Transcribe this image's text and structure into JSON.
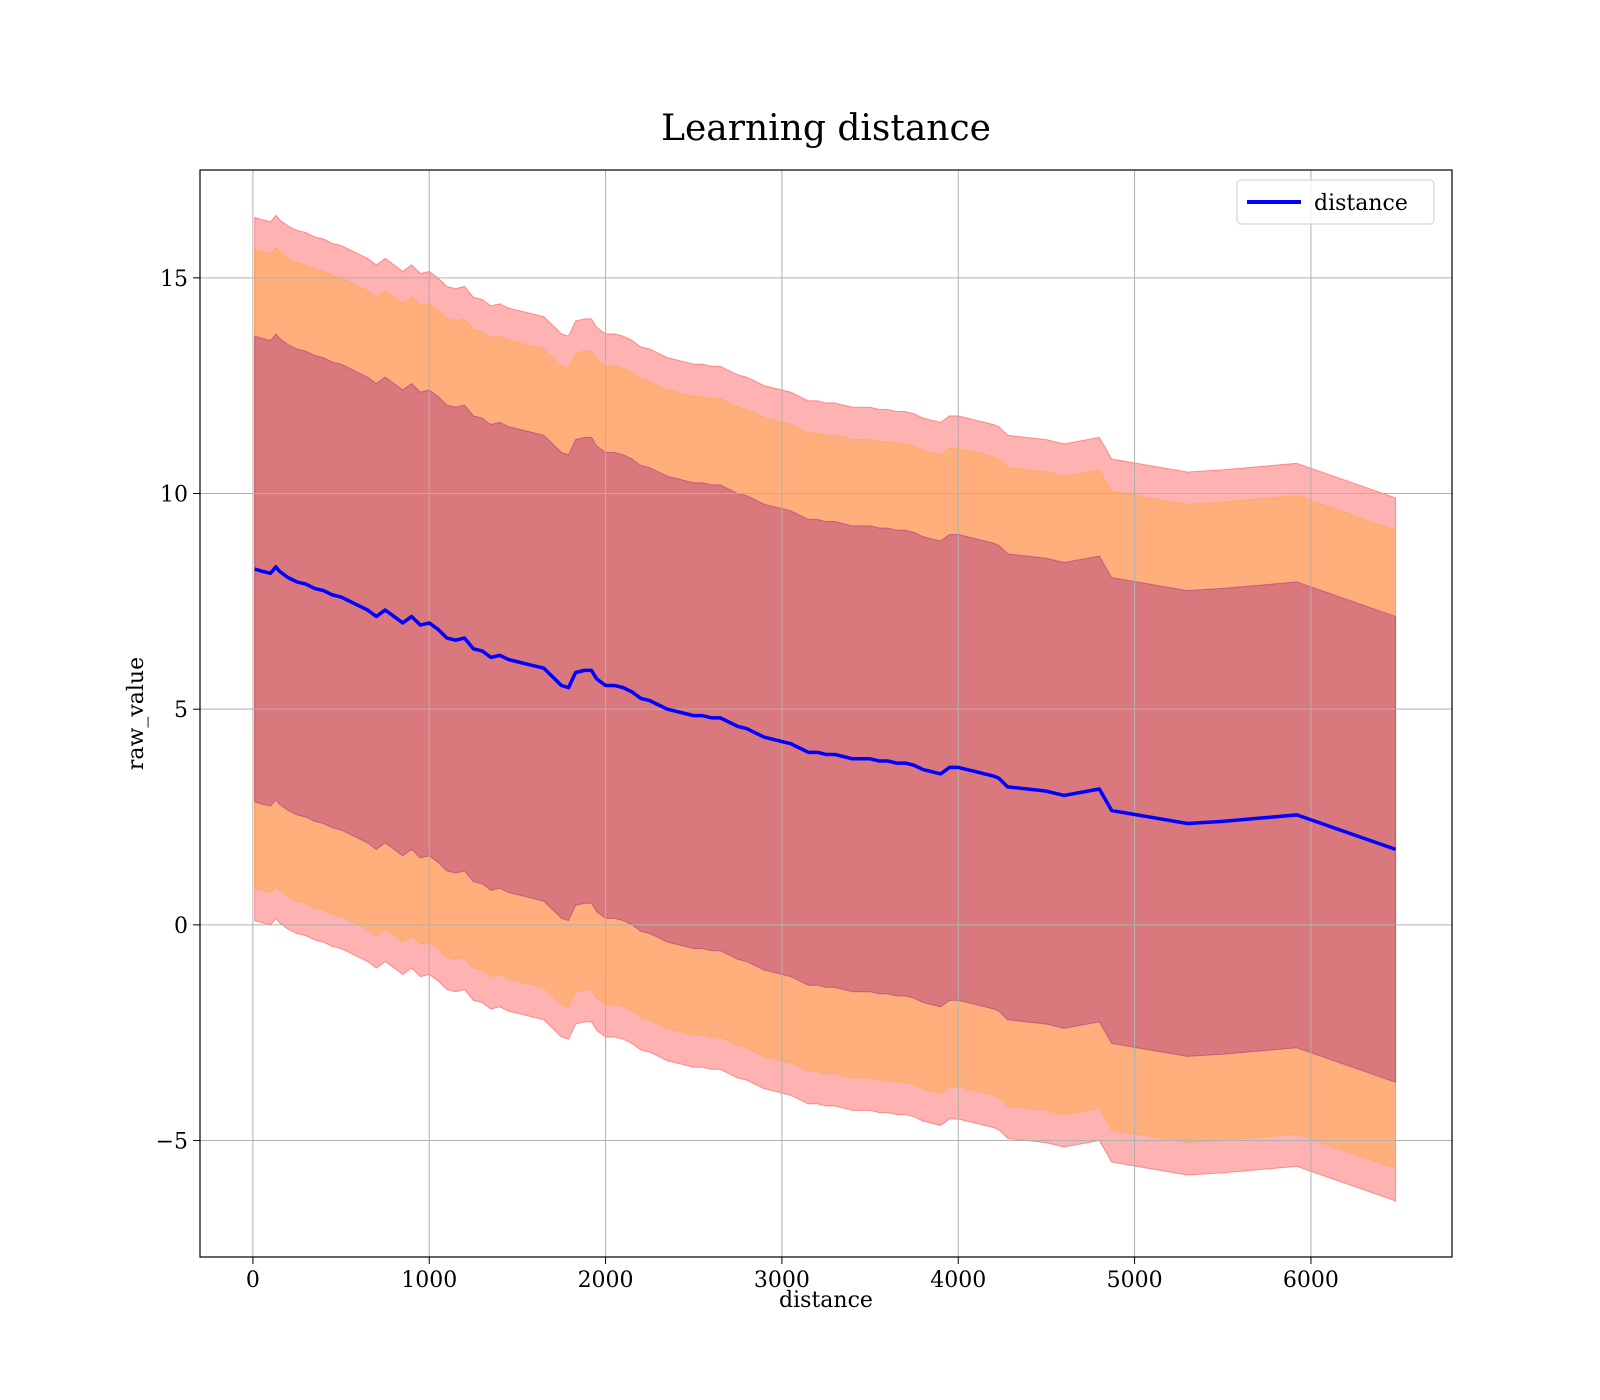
{
  "chart_data": {
    "type": "line",
    "title": "Learning distance",
    "xlabel": "distance",
    "ylabel": "raw_value",
    "xlim": [
      -300,
      6800
    ],
    "ylim": [
      -7.7,
      17.5
    ],
    "xticks": [
      0,
      1000,
      2000,
      3000,
      4000,
      5000,
      6000
    ],
    "xtick_labels": [
      "0",
      "1000",
      "2000",
      "3000",
      "4000",
      "5000",
      "6000"
    ],
    "yticks": [
      -5,
      0,
      5,
      10,
      15
    ],
    "ytick_labels": [
      "−5",
      "0",
      "5",
      "10",
      "15"
    ],
    "grid": true,
    "legend": {
      "position": "top-right",
      "entries": [
        "distance"
      ]
    },
    "colors": {
      "line": "#0000ff",
      "band_outer": "#ff0000",
      "band_middle": "#ffa500",
      "band_inner": "#800080",
      "grid": "#b0b0b0"
    },
    "series": [
      {
        "name": "distance",
        "x": [
          10,
          50,
          100,
          130,
          150,
          200,
          250,
          300,
          350,
          400,
          450,
          500,
          550,
          600,
          650,
          700,
          750,
          800,
          850,
          900,
          950,
          1000,
          1050,
          1100,
          1150,
          1200,
          1250,
          1300,
          1350,
          1400,
          1450,
          1500,
          1550,
          1600,
          1650,
          1700,
          1750,
          1790,
          1830,
          1880,
          1920,
          1950,
          2000,
          2050,
          2100,
          2150,
          2200,
          2250,
          2300,
          2350,
          2400,
          2450,
          2500,
          2550,
          2600,
          2650,
          2700,
          2750,
          2800,
          2850,
          2900,
          2950,
          3000,
          3050,
          3100,
          3150,
          3200,
          3250,
          3300,
          3350,
          3400,
          3450,
          3500,
          3550,
          3600,
          3650,
          3700,
          3750,
          3800,
          3850,
          3900,
          3950,
          4000,
          4050,
          4100,
          4150,
          4200,
          4230,
          4280,
          4500,
          4600,
          4800,
          4870,
          5300,
          5500,
          5920,
          6480
        ],
        "y": [
          8.25,
          8.2,
          8.15,
          8.3,
          8.2,
          8.05,
          7.95,
          7.9,
          7.8,
          7.75,
          7.65,
          7.6,
          7.5,
          7.4,
          7.3,
          7.15,
          7.3,
          7.15,
          7.0,
          7.15,
          6.95,
          7.0,
          6.85,
          6.65,
          6.6,
          6.65,
          6.4,
          6.35,
          6.2,
          6.25,
          6.15,
          6.1,
          6.05,
          6.0,
          5.95,
          5.75,
          5.55,
          5.5,
          5.85,
          5.9,
          5.9,
          5.7,
          5.55,
          5.55,
          5.5,
          5.4,
          5.25,
          5.2,
          5.1,
          5.0,
          4.95,
          4.9,
          4.85,
          4.85,
          4.8,
          4.8,
          4.7,
          4.6,
          4.55,
          4.45,
          4.35,
          4.3,
          4.25,
          4.2,
          4.1,
          4.0,
          4.0,
          3.95,
          3.95,
          3.9,
          3.85,
          3.85,
          3.85,
          3.8,
          3.8,
          3.75,
          3.75,
          3.7,
          3.6,
          3.55,
          3.5,
          3.65,
          3.65,
          3.6,
          3.55,
          3.5,
          3.45,
          3.4,
          3.2,
          3.1,
          3.0,
          3.15,
          2.65,
          2.35,
          2.4,
          2.55,
          1.75
        ],
        "band_inner_halfwidth": 5.4,
        "band_middle_halfwidth": 7.4,
        "band_outer_halfwidth": 8.15
      }
    ]
  }
}
